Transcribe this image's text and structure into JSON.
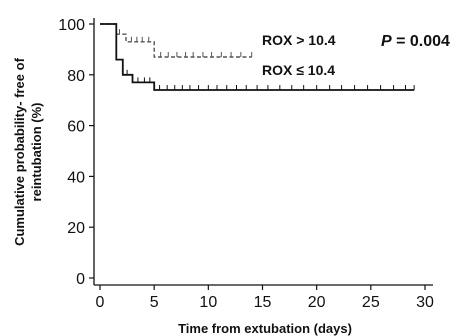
{
  "chart_data": {
    "type": "line",
    "subtype": "kaplan-meier",
    "xlabel": "Time from extubation (days)",
    "ylabel_lines": [
      "Cumulative probability- free of",
      "reintubation (%)"
    ],
    "xlim": [
      0,
      30
    ],
    "ylim": [
      0,
      100
    ],
    "xticks": [
      0,
      5,
      10,
      15,
      20,
      25,
      30
    ],
    "yticks": [
      0,
      20,
      40,
      60,
      80,
      100
    ],
    "grid": false,
    "series": [
      {
        "name": "ROX > 10.4",
        "style": "dashed",
        "color": "#555555",
        "steps": [
          [
            0,
            100
          ],
          [
            1.5,
            100
          ],
          [
            1.5,
            96
          ],
          [
            2.4,
            96
          ],
          [
            2.4,
            93
          ],
          [
            5,
            93
          ],
          [
            5,
            87
          ],
          [
            14,
            87
          ]
        ],
        "censor": [
          1.8,
          2.9,
          3.4,
          3.9,
          4.5,
          5.6,
          6.3,
          7.1,
          7.9,
          8.6,
          9.5,
          10.3,
          11.2,
          12.1,
          13.0,
          14.0
        ]
      },
      {
        "name": "ROX ≤ 10.4",
        "style": "solid",
        "color": "#111111",
        "steps": [
          [
            0,
            100
          ],
          [
            1.5,
            100
          ],
          [
            1.5,
            86
          ],
          [
            2.1,
            86
          ],
          [
            2.1,
            80
          ],
          [
            3.0,
            80
          ],
          [
            3.0,
            77
          ],
          [
            5,
            77
          ],
          [
            5,
            74
          ],
          [
            29,
            74
          ]
        ],
        "censor": [
          2.5,
          3.5,
          4.1,
          4.6,
          5.5,
          6.2,
          6.9,
          7.6,
          8.3,
          9.1,
          10.0,
          10.8,
          11.7,
          12.6,
          13.5,
          14.5,
          15.5,
          16.6,
          17.7,
          18.8,
          20.0,
          21.2,
          22.3,
          23.5,
          24.7,
          25.9,
          27.1,
          28.2,
          29.0
        ]
      }
    ],
    "legend_labels": [
      {
        "text": "ROX > 10.4",
        "series": 0
      },
      {
        "text": "ROX ≤ 10.4",
        "series": 1
      }
    ],
    "p_value": {
      "label": "P",
      "value": " = 0.004"
    }
  }
}
